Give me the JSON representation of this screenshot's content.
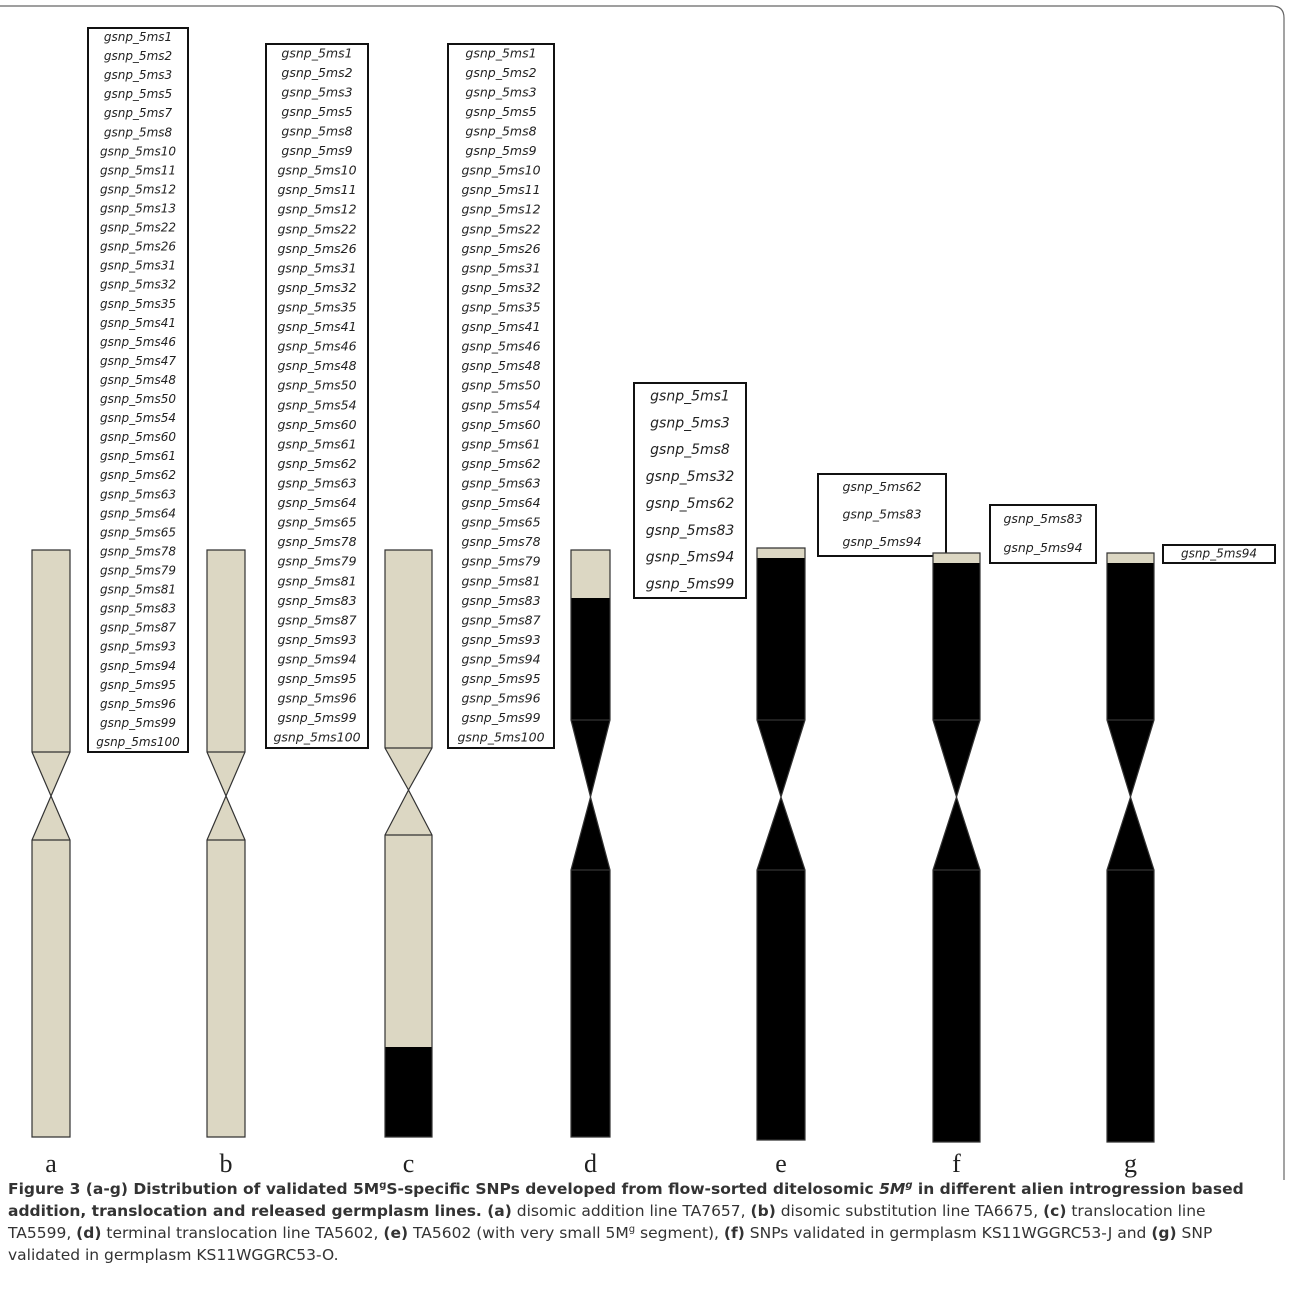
{
  "panels": [
    {
      "label": "a",
      "snps": [
        "gsnp_5ms1",
        "gsnp_5ms2",
        "gsnp_5ms3",
        "gsnp_5ms5",
        "gsnp_5ms7",
        "gsnp_5ms8",
        "gsnp_5ms10",
        "gsnp_5ms11",
        "gsnp_5ms12",
        "gsnp_5ms13",
        "gsnp_5ms22",
        "gsnp_5ms26",
        "gsnp_5ms31",
        "gsnp_5ms32",
        "gsnp_5ms35",
        "gsnp_5ms41",
        "gsnp_5ms46",
        "gsnp_5ms47",
        "gsnp_5ms48",
        "gsnp_5ms50",
        "gsnp_5ms54",
        "gsnp_5ms60",
        "gsnp_5ms61",
        "gsnp_5ms62",
        "gsnp_5ms63",
        "gsnp_5ms64",
        "gsnp_5ms65",
        "gsnp_5ms78",
        "gsnp_5ms79",
        "gsnp_5ms81",
        "gsnp_5ms83",
        "gsnp_5ms87",
        "gsnp_5ms93",
        "gsnp_5ms94",
        "gsnp_5ms95",
        "gsnp_5ms96",
        "gsnp_5ms99",
        "gsnp_5ms100"
      ]
    },
    {
      "label": "b",
      "snps": [
        "gsnp_5ms1",
        "gsnp_5ms2",
        "gsnp_5ms3",
        "gsnp_5ms5",
        "gsnp_5ms8",
        "gsnp_5ms9",
        "gsnp_5ms10",
        "gsnp_5ms11",
        "gsnp_5ms12",
        "gsnp_5ms22",
        "gsnp_5ms26",
        "gsnp_5ms31",
        "gsnp_5ms32",
        "gsnp_5ms35",
        "gsnp_5ms41",
        "gsnp_5ms46",
        "gsnp_5ms48",
        "gsnp_5ms50",
        "gsnp_5ms54",
        "gsnp_5ms60",
        "gsnp_5ms61",
        "gsnp_5ms62",
        "gsnp_5ms63",
        "gsnp_5ms64",
        "gsnp_5ms65",
        "gsnp_5ms78",
        "gsnp_5ms79",
        "gsnp_5ms81",
        "gsnp_5ms83",
        "gsnp_5ms87",
        "gsnp_5ms93",
        "gsnp_5ms94",
        "gsnp_5ms95",
        "gsnp_5ms96",
        "gsnp_5ms99",
        "gsnp_5ms100"
      ]
    },
    {
      "label": "c",
      "snps": [
        "gsnp_5ms1",
        "gsnp_5ms2",
        "gsnp_5ms3",
        "gsnp_5ms5",
        "gsnp_5ms8",
        "gsnp_5ms9",
        "gsnp_5ms10",
        "gsnp_5ms11",
        "gsnp_5ms12",
        "gsnp_5ms22",
        "gsnp_5ms26",
        "gsnp_5ms31",
        "gsnp_5ms32",
        "gsnp_5ms35",
        "gsnp_5ms41",
        "gsnp_5ms46",
        "gsnp_5ms48",
        "gsnp_5ms50",
        "gsnp_5ms54",
        "gsnp_5ms60",
        "gsnp_5ms61",
        "gsnp_5ms62",
        "gsnp_5ms63",
        "gsnp_5ms64",
        "gsnp_5ms65",
        "gsnp_5ms78",
        "gsnp_5ms79",
        "gsnp_5ms81",
        "gsnp_5ms83",
        "gsnp_5ms87",
        "gsnp_5ms93",
        "gsnp_5ms94",
        "gsnp_5ms95",
        "gsnp_5ms96",
        "gsnp_5ms99",
        "gsnp_5ms100"
      ]
    },
    {
      "label": "d",
      "snps": [
        "gsnp_5ms1",
        "gsnp_5ms3",
        "gsnp_5ms8",
        "gsnp_5ms32",
        "gsnp_5ms62",
        "gsnp_5ms83",
        "gsnp_5ms94",
        "gsnp_5ms99"
      ]
    },
    {
      "label": "e",
      "snps": [
        "gsnp_5ms62",
        "gsnp_5ms83",
        "gsnp_5ms94"
      ]
    },
    {
      "label": "f",
      "snps": [
        "gsnp_5ms83",
        "gsnp_5ms94"
      ]
    },
    {
      "label": "g",
      "snps": [
        "gsnp_5ms94"
      ]
    }
  ],
  "caption": [
    {
      "text": "Figure 3",
      "style": "bold"
    },
    {
      "text": " (a-g) Distribution of validated 5M",
      "style": "bold"
    },
    {
      "text": "g",
      "style": "bold-sup"
    },
    {
      "text": "S-specific SNPs developed from flow-sorted ditelosomic ",
      "style": "bold"
    },
    {
      "text": "5M",
      "style": "bold-italic"
    },
    {
      "text": "g",
      "style": "bold-italic-sup"
    },
    {
      "text": " in different alien introgression based addition, translocation and released germplasm lines.",
      "style": "bold"
    },
    {
      "text": " (a)",
      "style": "bold"
    },
    {
      "text": " disomic addition line TA7657, ",
      "style": "normal"
    },
    {
      "text": "(b)",
      "style": "bold"
    },
    {
      "text": " disomic substitution line TA6675, ",
      "style": "normal"
    },
    {
      "text": "(c)",
      "style": "bold"
    },
    {
      "text": " translocation line TA5599, ",
      "style": "normal"
    },
    {
      "text": "(d)",
      "style": "bold"
    },
    {
      "text": " terminal translocation line TA5602, ",
      "style": "normal"
    },
    {
      "text": "(e)",
      "style": "bold"
    },
    {
      "text": " TA5602 (with very small 5M",
      "style": "normal"
    },
    {
      "text": "g",
      "style": "sup"
    },
    {
      "text": " segment), ",
      "style": "normal"
    },
    {
      "text": "(f)",
      "style": "bold"
    },
    {
      "text": " SNPs validated in germplasm KS11WGGRC53-J and ",
      "style": "normal"
    },
    {
      "text": "(g)",
      "style": "bold"
    },
    {
      "text": " SNP validated in germplasm KS11WGGRC53-O.",
      "style": "normal"
    }
  ]
}
